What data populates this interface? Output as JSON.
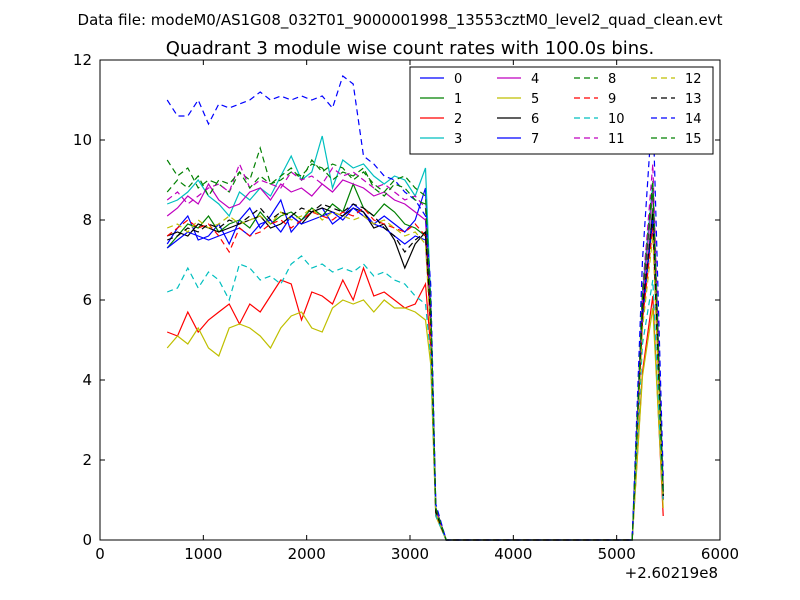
{
  "header": {
    "data_file_text": "Data file: modeM0/AS1G08_032T01_9000001998_13553cztM0_level2_quad_clean.evt"
  },
  "chart_data": {
    "type": "line",
    "title": "Quadrant 3 module wise count rates with 100.0s bins.",
    "xlabel": "",
    "ylabel": "",
    "x_offset_label": "+2.60219e8",
    "xlim": [
      0,
      6000
    ],
    "ylim": [
      0,
      12
    ],
    "x_ticks": [
      0,
      1000,
      2000,
      3000,
      4000,
      5000,
      6000
    ],
    "y_ticks": [
      0,
      2,
      4,
      6,
      8,
      10,
      12
    ],
    "grid": false,
    "legend_placement": "top-right",
    "legend_columns": 4,
    "x": [
      650,
      750,
      850,
      950,
      1050,
      1150,
      1250,
      1350,
      1450,
      1550,
      1650,
      1750,
      1850,
      1950,
      2050,
      2150,
      2250,
      2350,
      2450,
      2550,
      2650,
      2750,
      2850,
      2950,
      3050,
      3150,
      3200,
      3250,
      3350,
      3450,
      3550,
      3650,
      3750,
      3850,
      3950,
      4050,
      4150,
      4250,
      4350,
      4450,
      4550,
      4650,
      4750,
      4850,
      4950,
      5050,
      5150,
      5250,
      5350,
      5450
    ],
    "series": [
      {
        "name": "0",
        "color": "#0000ff",
        "style": "solid",
        "values": [
          7.4,
          7.8,
          8.1,
          7.5,
          7.6,
          7.9,
          7.4,
          8.0,
          8.3,
          7.8,
          8.1,
          8.5,
          7.7,
          8.0,
          8.2,
          8.3,
          7.9,
          8.1,
          8.4,
          8.2,
          7.9,
          8.1,
          7.9,
          7.7,
          8.0,
          8.8,
          5.5,
          0.8,
          0.0,
          0.0,
          0.0,
          0.0,
          0.0,
          0.0,
          0.0,
          0.0,
          0.0,
          0.0,
          0.0,
          0.0,
          0.0,
          0.0,
          0.0,
          0.0,
          0.0,
          0.0,
          0.0,
          5.8,
          8.0,
          1.2
        ]
      },
      {
        "name": "1",
        "color": "#008000",
        "style": "solid",
        "values": [
          7.3,
          7.6,
          7.9,
          7.8,
          8.1,
          7.7,
          7.9,
          8.0,
          7.8,
          8.2,
          7.9,
          8.1,
          8.2,
          8.0,
          8.3,
          8.1,
          8.4,
          8.2,
          8.9,
          8.3,
          8.1,
          8.4,
          8.2,
          7.9,
          7.8,
          7.6,
          5.2,
          0.7,
          0.0,
          0.0,
          0.0,
          0.0,
          0.0,
          0.0,
          0.0,
          0.0,
          0.0,
          0.0,
          0.0,
          0.0,
          0.0,
          0.0,
          0.0,
          0.0,
          0.0,
          0.0,
          0.0,
          5.5,
          8.3,
          1.1
        ]
      },
      {
        "name": "2",
        "color": "#ff0000",
        "style": "solid",
        "values": [
          5.2,
          5.1,
          5.7,
          5.2,
          5.5,
          5.7,
          5.9,
          5.4,
          5.9,
          5.7,
          6.1,
          6.5,
          6.4,
          5.5,
          6.2,
          6.1,
          5.9,
          6.5,
          6.0,
          6.8,
          6.1,
          6.2,
          6.0,
          5.8,
          5.9,
          6.4,
          4.8,
          0.6,
          0.0,
          0.0,
          0.0,
          0.0,
          0.0,
          0.0,
          0.0,
          0.0,
          0.0,
          0.0,
          0.0,
          0.0,
          0.0,
          0.0,
          0.0,
          0.0,
          0.0,
          0.0,
          0.0,
          4.2,
          6.1,
          0.6
        ]
      },
      {
        "name": "3",
        "color": "#00bfbf",
        "style": "solid",
        "values": [
          8.4,
          8.5,
          8.7,
          9.0,
          8.6,
          8.4,
          8.1,
          8.7,
          8.5,
          8.8,
          8.6,
          9.1,
          9.6,
          9.0,
          9.2,
          10.1,
          8.8,
          9.5,
          9.3,
          9.4,
          9.1,
          8.9,
          9.1,
          9.0,
          8.6,
          9.3,
          6.0,
          0.8,
          0.0,
          0.0,
          0.0,
          0.0,
          0.0,
          0.0,
          0.0,
          0.0,
          0.0,
          0.0,
          0.0,
          0.0,
          0.0,
          0.0,
          0.0,
          0.0,
          0.0,
          0.0,
          0.0,
          6.2,
          8.9,
          1.3
        ]
      },
      {
        "name": "4",
        "color": "#bf00bf",
        "style": "solid",
        "values": [
          8.1,
          8.3,
          8.6,
          8.4,
          8.9,
          8.5,
          8.3,
          8.4,
          8.7,
          8.8,
          8.5,
          8.9,
          8.7,
          8.8,
          8.6,
          8.9,
          8.7,
          9.0,
          8.9,
          8.8,
          8.6,
          8.7,
          8.5,
          8.4,
          8.2,
          8.0,
          5.7,
          0.8,
          0.0,
          0.0,
          0.0,
          0.0,
          0.0,
          0.0,
          0.0,
          0.0,
          0.0,
          0.0,
          0.0,
          0.0,
          0.0,
          0.0,
          0.0,
          0.0,
          0.0,
          0.0,
          0.0,
          6.0,
          8.7,
          1.2
        ]
      },
      {
        "name": "5",
        "color": "#bfbf00",
        "style": "solid",
        "values": [
          4.8,
          5.1,
          4.9,
          5.3,
          4.8,
          4.6,
          5.3,
          5.4,
          5.3,
          5.1,
          4.8,
          5.3,
          5.6,
          5.7,
          5.3,
          5.2,
          5.8,
          6.0,
          5.9,
          6.0,
          5.7,
          6.0,
          5.8,
          5.8,
          5.7,
          5.5,
          4.4,
          0.6,
          0.0,
          0.0,
          0.0,
          0.0,
          0.0,
          0.0,
          0.0,
          0.0,
          0.0,
          0.0,
          0.0,
          0.0,
          0.0,
          0.0,
          0.0,
          0.0,
          0.0,
          0.0,
          0.0,
          4.1,
          5.8,
          0.8
        ]
      },
      {
        "name": "6",
        "color": "#000000",
        "style": "solid",
        "values": [
          7.6,
          7.7,
          7.6,
          7.9,
          7.8,
          7.7,
          7.8,
          7.9,
          8.0,
          8.1,
          7.8,
          7.9,
          8.1,
          7.9,
          8.2,
          8.3,
          8.2,
          8.1,
          8.3,
          8.2,
          7.8,
          7.9,
          7.5,
          6.8,
          7.4,
          7.7,
          5.4,
          0.7,
          0.0,
          0.0,
          0.0,
          0.0,
          0.0,
          0.0,
          0.0,
          0.0,
          0.0,
          0.0,
          0.0,
          0.0,
          0.0,
          0.0,
          0.0,
          0.0,
          0.0,
          0.0,
          0.0,
          5.7,
          8.0,
          1.1
        ]
      },
      {
        "name": "7",
        "color": "#0000ff",
        "style": "solid",
        "values": [
          7.3,
          7.5,
          7.7,
          7.6,
          7.5,
          7.6,
          7.7,
          7.8,
          7.6,
          7.9,
          8.0,
          7.7,
          8.1,
          7.9,
          8.0,
          8.1,
          8.2,
          8.0,
          8.3,
          8.1,
          7.9,
          7.8,
          7.6,
          7.4,
          7.6,
          7.5,
          5.3,
          0.7,
          0.0,
          0.0,
          0.0,
          0.0,
          0.0,
          0.0,
          0.0,
          0.0,
          0.0,
          0.0,
          0.0,
          0.0,
          0.0,
          0.0,
          0.0,
          0.0,
          0.0,
          0.0,
          0.0,
          5.6,
          8.1,
          1.0
        ]
      },
      {
        "name": "8",
        "color": "#008000",
        "style": "dashed",
        "values": [
          9.5,
          9.1,
          9.3,
          8.8,
          9.0,
          8.9,
          8.7,
          9.2,
          9.0,
          9.8,
          8.9,
          9.1,
          9.3,
          9.0,
          9.5,
          9.2,
          9.4,
          9.3,
          9.0,
          9.2,
          8.9,
          8.7,
          9.0,
          9.1,
          8.8,
          8.6,
          6.0,
          0.8,
          0.0,
          0.0,
          0.0,
          0.0,
          0.0,
          0.0,
          0.0,
          0.0,
          0.0,
          0.0,
          0.0,
          0.0,
          0.0,
          0.0,
          0.0,
          0.0,
          0.0,
          0.0,
          0.0,
          6.3,
          9.0,
          1.3
        ]
      },
      {
        "name": "9",
        "color": "#ff0000",
        "style": "dashed",
        "values": [
          7.6,
          7.8,
          8.0,
          7.8,
          7.9,
          7.6,
          7.2,
          7.8,
          7.6,
          7.7,
          7.9,
          8.0,
          7.8,
          8.0,
          8.2,
          8.1,
          8.0,
          8.2,
          8.1,
          8.3,
          8.0,
          7.9,
          7.8,
          7.7,
          7.9,
          7.6,
          5.2,
          0.7,
          0.0,
          0.0,
          0.0,
          0.0,
          0.0,
          0.0,
          0.0,
          0.0,
          0.0,
          0.0,
          0.0,
          0.0,
          0.0,
          0.0,
          0.0,
          0.0,
          0.0,
          0.0,
          0.0,
          5.5,
          7.8,
          1.0
        ]
      },
      {
        "name": "10",
        "color": "#00bfbf",
        "style": "dashed",
        "values": [
          6.2,
          6.3,
          6.8,
          6.3,
          6.7,
          6.5,
          6.0,
          6.9,
          6.8,
          6.5,
          6.6,
          6.4,
          6.9,
          7.1,
          6.8,
          6.9,
          6.7,
          6.8,
          6.7,
          6.9,
          6.6,
          6.7,
          6.5,
          6.4,
          6.1,
          5.9,
          4.6,
          0.6,
          0.0,
          0.0,
          0.0,
          0.0,
          0.0,
          0.0,
          0.0,
          0.0,
          0.0,
          0.0,
          0.0,
          0.0,
          0.0,
          0.0,
          0.0,
          0.0,
          0.0,
          0.0,
          0.0,
          4.9,
          6.5,
          0.9
        ]
      },
      {
        "name": "11",
        "color": "#bf00bf",
        "style": "dashed",
        "values": [
          8.5,
          8.7,
          8.4,
          8.6,
          8.8,
          8.9,
          8.7,
          9.4,
          8.8,
          9.0,
          8.9,
          8.8,
          9.2,
          9.0,
          9.1,
          8.9,
          9.3,
          9.1,
          9.2,
          9.0,
          8.8,
          8.9,
          8.7,
          8.5,
          8.6,
          8.3,
          5.8,
          0.8,
          0.0,
          0.0,
          0.0,
          0.0,
          0.0,
          0.0,
          0.0,
          0.0,
          0.0,
          0.0,
          0.0,
          0.0,
          0.0,
          0.0,
          0.0,
          0.0,
          0.0,
          0.0,
          0.0,
          6.2,
          9.4,
          1.3
        ]
      },
      {
        "name": "12",
        "color": "#bfbf00",
        "style": "dashed",
        "values": [
          7.8,
          7.9,
          7.7,
          8.0,
          7.8,
          7.9,
          8.1,
          7.9,
          8.0,
          8.1,
          7.9,
          8.2,
          8.0,
          8.1,
          8.3,
          8.0,
          8.2,
          8.1,
          8.0,
          8.1,
          7.9,
          8.0,
          7.8,
          7.6,
          7.7,
          7.4,
          5.1,
          0.7,
          0.0,
          0.0,
          0.0,
          0.0,
          0.0,
          0.0,
          0.0,
          0.0,
          0.0,
          0.0,
          0.0,
          0.0,
          0.0,
          0.0,
          0.0,
          0.0,
          0.0,
          0.0,
          0.0,
          5.3,
          7.6,
          1.0
        ]
      },
      {
        "name": "13",
        "color": "#000000",
        "style": "dashed",
        "values": [
          7.5,
          7.6,
          7.8,
          7.7,
          7.9,
          7.8,
          8.0,
          7.9,
          8.1,
          8.3,
          8.0,
          8.2,
          8.1,
          8.3,
          8.2,
          8.4,
          8.3,
          8.2,
          8.4,
          8.3,
          8.1,
          7.8,
          7.6,
          7.2,
          7.5,
          7.7,
          5.5,
          0.7,
          0.0,
          0.0,
          0.0,
          0.0,
          0.0,
          0.0,
          0.0,
          0.0,
          0.0,
          0.0,
          0.0,
          0.0,
          0.0,
          0.0,
          0.0,
          0.0,
          0.0,
          0.0,
          0.0,
          5.8,
          8.2,
          1.1
        ]
      },
      {
        "name": "14",
        "color": "#0000ff",
        "style": "dashed",
        "values": [
          11.0,
          10.6,
          10.6,
          11.0,
          10.4,
          10.9,
          10.8,
          10.9,
          11.0,
          11.2,
          11.0,
          11.1,
          11.0,
          11.1,
          11.0,
          11.1,
          10.8,
          11.6,
          11.4,
          9.6,
          9.4,
          9.1,
          9.0,
          8.7,
          8.5,
          8.1,
          6.4,
          0.9,
          0.0,
          0.0,
          0.0,
          0.0,
          0.0,
          0.0,
          0.0,
          0.0,
          0.0,
          0.0,
          0.0,
          0.0,
          0.0,
          0.0,
          0.0,
          0.0,
          0.0,
          0.0,
          0.0,
          7.0,
          10.9,
          1.6
        ]
      },
      {
        "name": "15",
        "color": "#008000",
        "style": "dashed",
        "values": [
          8.7,
          9.0,
          8.8,
          9.1,
          8.6,
          9.0,
          8.9,
          9.2,
          8.8,
          9.1,
          8.9,
          9.0,
          9.2,
          9.1,
          9.4,
          9.3,
          9.0,
          9.2,
          9.1,
          9.3,
          8.8,
          8.6,
          8.9,
          8.8,
          8.5,
          8.4,
          5.9,
          0.8,
          0.0,
          0.0,
          0.0,
          0.0,
          0.0,
          0.0,
          0.0,
          0.0,
          0.0,
          0.0,
          0.0,
          0.0,
          0.0,
          0.0,
          0.0,
          0.0,
          0.0,
          0.0,
          0.0,
          6.1,
          8.8,
          1.2
        ]
      }
    ]
  }
}
